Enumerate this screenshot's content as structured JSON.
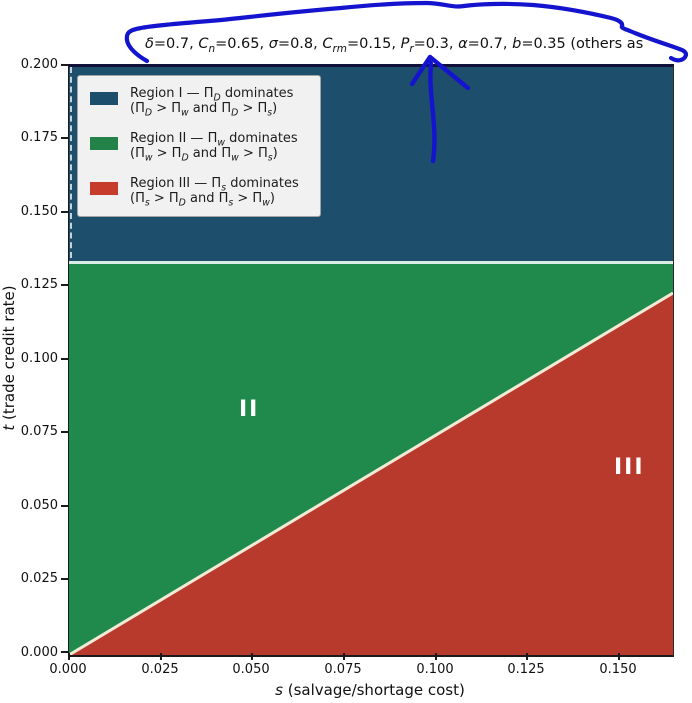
{
  "colors": {
    "region_I_blue": "#1d4e6b",
    "region_II_green": "#1f8a4b",
    "region_III_red": "#b83a2c",
    "boundary_line": "#f0ead6",
    "horizontal_boundary_line": "#d9ece6",
    "legend_background": "#f1f1f1",
    "hand_annotation_blue": "#1414cf",
    "figure_background": "#ffffff"
  },
  "title": {
    "plain": "δ=0.7, Cn=0.65, σ=0.8, Crm=0.15, Pr=0.3, α=0.7, b=0.35  (others as",
    "segments": [
      {
        "t": "δ",
        "i": 1
      },
      {
        "t": "=0.7, "
      },
      {
        "t": "C",
        "i": 1
      },
      {
        "t": "n",
        "sub": 1,
        "i": 1
      },
      {
        "t": "=0.65, "
      },
      {
        "t": "σ",
        "i": 1
      },
      {
        "t": "=0.8, "
      },
      {
        "t": "C",
        "i": 1
      },
      {
        "t": "rm",
        "sub": 1,
        "i": 1
      },
      {
        "t": "=0.15, "
      },
      {
        "t": "P",
        "i": 1
      },
      {
        "t": "r",
        "sub": 1,
        "i": 1
      },
      {
        "t": "=0.3, "
      },
      {
        "t": "α",
        "i": 1
      },
      {
        "t": "=0.7, "
      },
      {
        "t": "b",
        "i": 1
      },
      {
        "t": "=0.35  (others as"
      }
    ]
  },
  "axes": {
    "x": {
      "label_plain": "s  (salvage/shortage cost)",
      "label_segments": [
        {
          "t": "s",
          "i": 1
        },
        {
          "t": "  (salvage/shortage cost)"
        }
      ],
      "ticks": [
        "0.000",
        "0.025",
        "0.050",
        "0.075",
        "0.100",
        "0.125",
        "0.150"
      ]
    },
    "y": {
      "label_plain": "t (trade credit rate)",
      "label_segments": [
        {
          "t": "t",
          "i": 1
        },
        {
          "t": " (trade credit rate)"
        }
      ],
      "ticks": [
        "0.200",
        "0.175",
        "0.150",
        "0.125",
        "0.100",
        "0.075",
        "0.050",
        "0.025",
        "0.000"
      ]
    }
  },
  "legend": {
    "entries": [
      {
        "swatch_color": "#1d4e6b",
        "line1": [
          {
            "t": "Region I — Π"
          },
          {
            "t": "D",
            "sub": 1,
            "i": 1
          },
          {
            "t": " dominates"
          }
        ],
        "line2": [
          {
            "t": "(Π"
          },
          {
            "t": "D",
            "sub": 1,
            "i": 1
          },
          {
            "t": " > Π"
          },
          {
            "t": "w",
            "sub": 1,
            "i": 1
          },
          {
            "t": "  and  Π"
          },
          {
            "t": "D",
            "sub": 1,
            "i": 1
          },
          {
            "t": " > Π"
          },
          {
            "t": "s",
            "sub": 1,
            "i": 1
          },
          {
            "t": ")"
          }
        ]
      },
      {
        "swatch_color": "#228247",
        "line1": [
          {
            "t": "Region II — Π"
          },
          {
            "t": "w",
            "sub": 1,
            "i": 1
          },
          {
            "t": " dominates"
          }
        ],
        "line2": [
          {
            "t": "(Π"
          },
          {
            "t": "w",
            "sub": 1,
            "i": 1
          },
          {
            "t": " > Π"
          },
          {
            "t": "D",
            "sub": 1,
            "i": 1
          },
          {
            "t": "  and  Π"
          },
          {
            "t": "w",
            "sub": 1,
            "i": 1
          },
          {
            "t": " > Π"
          },
          {
            "t": "s",
            "sub": 1,
            "i": 1
          },
          {
            "t": ")"
          }
        ]
      },
      {
        "swatch_color": "#c63b2b",
        "line1": [
          {
            "t": "Region III — Π"
          },
          {
            "t": "s",
            "sub": 1,
            "i": 1
          },
          {
            "t": " dominates"
          }
        ],
        "line2": [
          {
            "t": "(Π"
          },
          {
            "t": "s",
            "sub": 1,
            "i": 1
          },
          {
            "t": " > Π"
          },
          {
            "t": "D",
            "sub": 1,
            "i": 1
          },
          {
            "t": "  and  Π"
          },
          {
            "t": "s",
            "sub": 1,
            "i": 1
          },
          {
            "t": " > Π"
          },
          {
            "t": "w",
            "sub": 1,
            "i": 1
          },
          {
            "t": ")"
          }
        ]
      }
    ]
  },
  "region_labels": {
    "II": "II",
    "III": "III"
  },
  "annotations": {
    "color": "#1414cf",
    "items": [
      {
        "type": "hand-drawn-brace",
        "desc": "freehand loop drawn over the parameter list in the title"
      },
      {
        "type": "hand-drawn-arrow",
        "desc": "freehand arrow pointing up at Pr=0.3 in the title",
        "target": "Pr=0.3"
      }
    ]
  },
  "chart_data": {
    "type": "area",
    "title": "δ=0.7, Cn=0.65, σ=0.8, Crm=0.15, Pr=0.3, α=0.7, b=0.35  (others as [clipped at figure edge]",
    "xlabel": "s (salvage/shortage cost)",
    "ylabel": "t (trade credit rate)",
    "xlim": [
      0,
      0.165
    ],
    "ylim": [
      0,
      0.2
    ],
    "xticks": [
      0.0,
      0.025,
      0.05,
      0.075,
      0.1,
      0.125,
      0.15
    ],
    "yticks": [
      0.0,
      0.025,
      0.05,
      0.075,
      0.1,
      0.125,
      0.15,
      0.175,
      0.2
    ],
    "grid": false,
    "legend_position": "upper left",
    "regions": [
      {
        "label": "I",
        "name": "Region I — ΠD dominates (ΠD > Πw and ΠD > Πs)",
        "color": "#1d4e6b",
        "extent": "horizontal band t > 0.133 across full s range"
      },
      {
        "label": "II",
        "name": "Region II — Πw dominates (Πw > ΠD and Πw > Πs)",
        "color": "#1f8a4b",
        "extent": "0.745·s < t < 0.133"
      },
      {
        "label": "III",
        "name": "Region III — Πs dominates (Πs > ΠD and Πs > Πw)",
        "color": "#b83a2c",
        "extent": "lower-right triangle t < 0.745·s"
      }
    ],
    "boundaries": [
      {
        "between": "I–II",
        "shape": "horizontal",
        "t": 0.133,
        "points": [
          [
            0,
            0.133
          ],
          [
            0.165,
            0.133
          ]
        ]
      },
      {
        "between": "II–III",
        "shape": "straight line through origin",
        "slope": 0.745,
        "points": [
          [
            0,
            0
          ],
          [
            0.165,
            0.123
          ]
        ]
      },
      {
        "between": "I–II at s=0",
        "shape": "dashed vertical segment",
        "s": 0,
        "t_range": [
          0.133,
          0.2
        ]
      }
    ],
    "region_text_labels": [
      {
        "text": "II",
        "s": 0.049,
        "t": 0.083
      },
      {
        "text": "III",
        "s": 0.15,
        "t": 0.063
      }
    ]
  }
}
